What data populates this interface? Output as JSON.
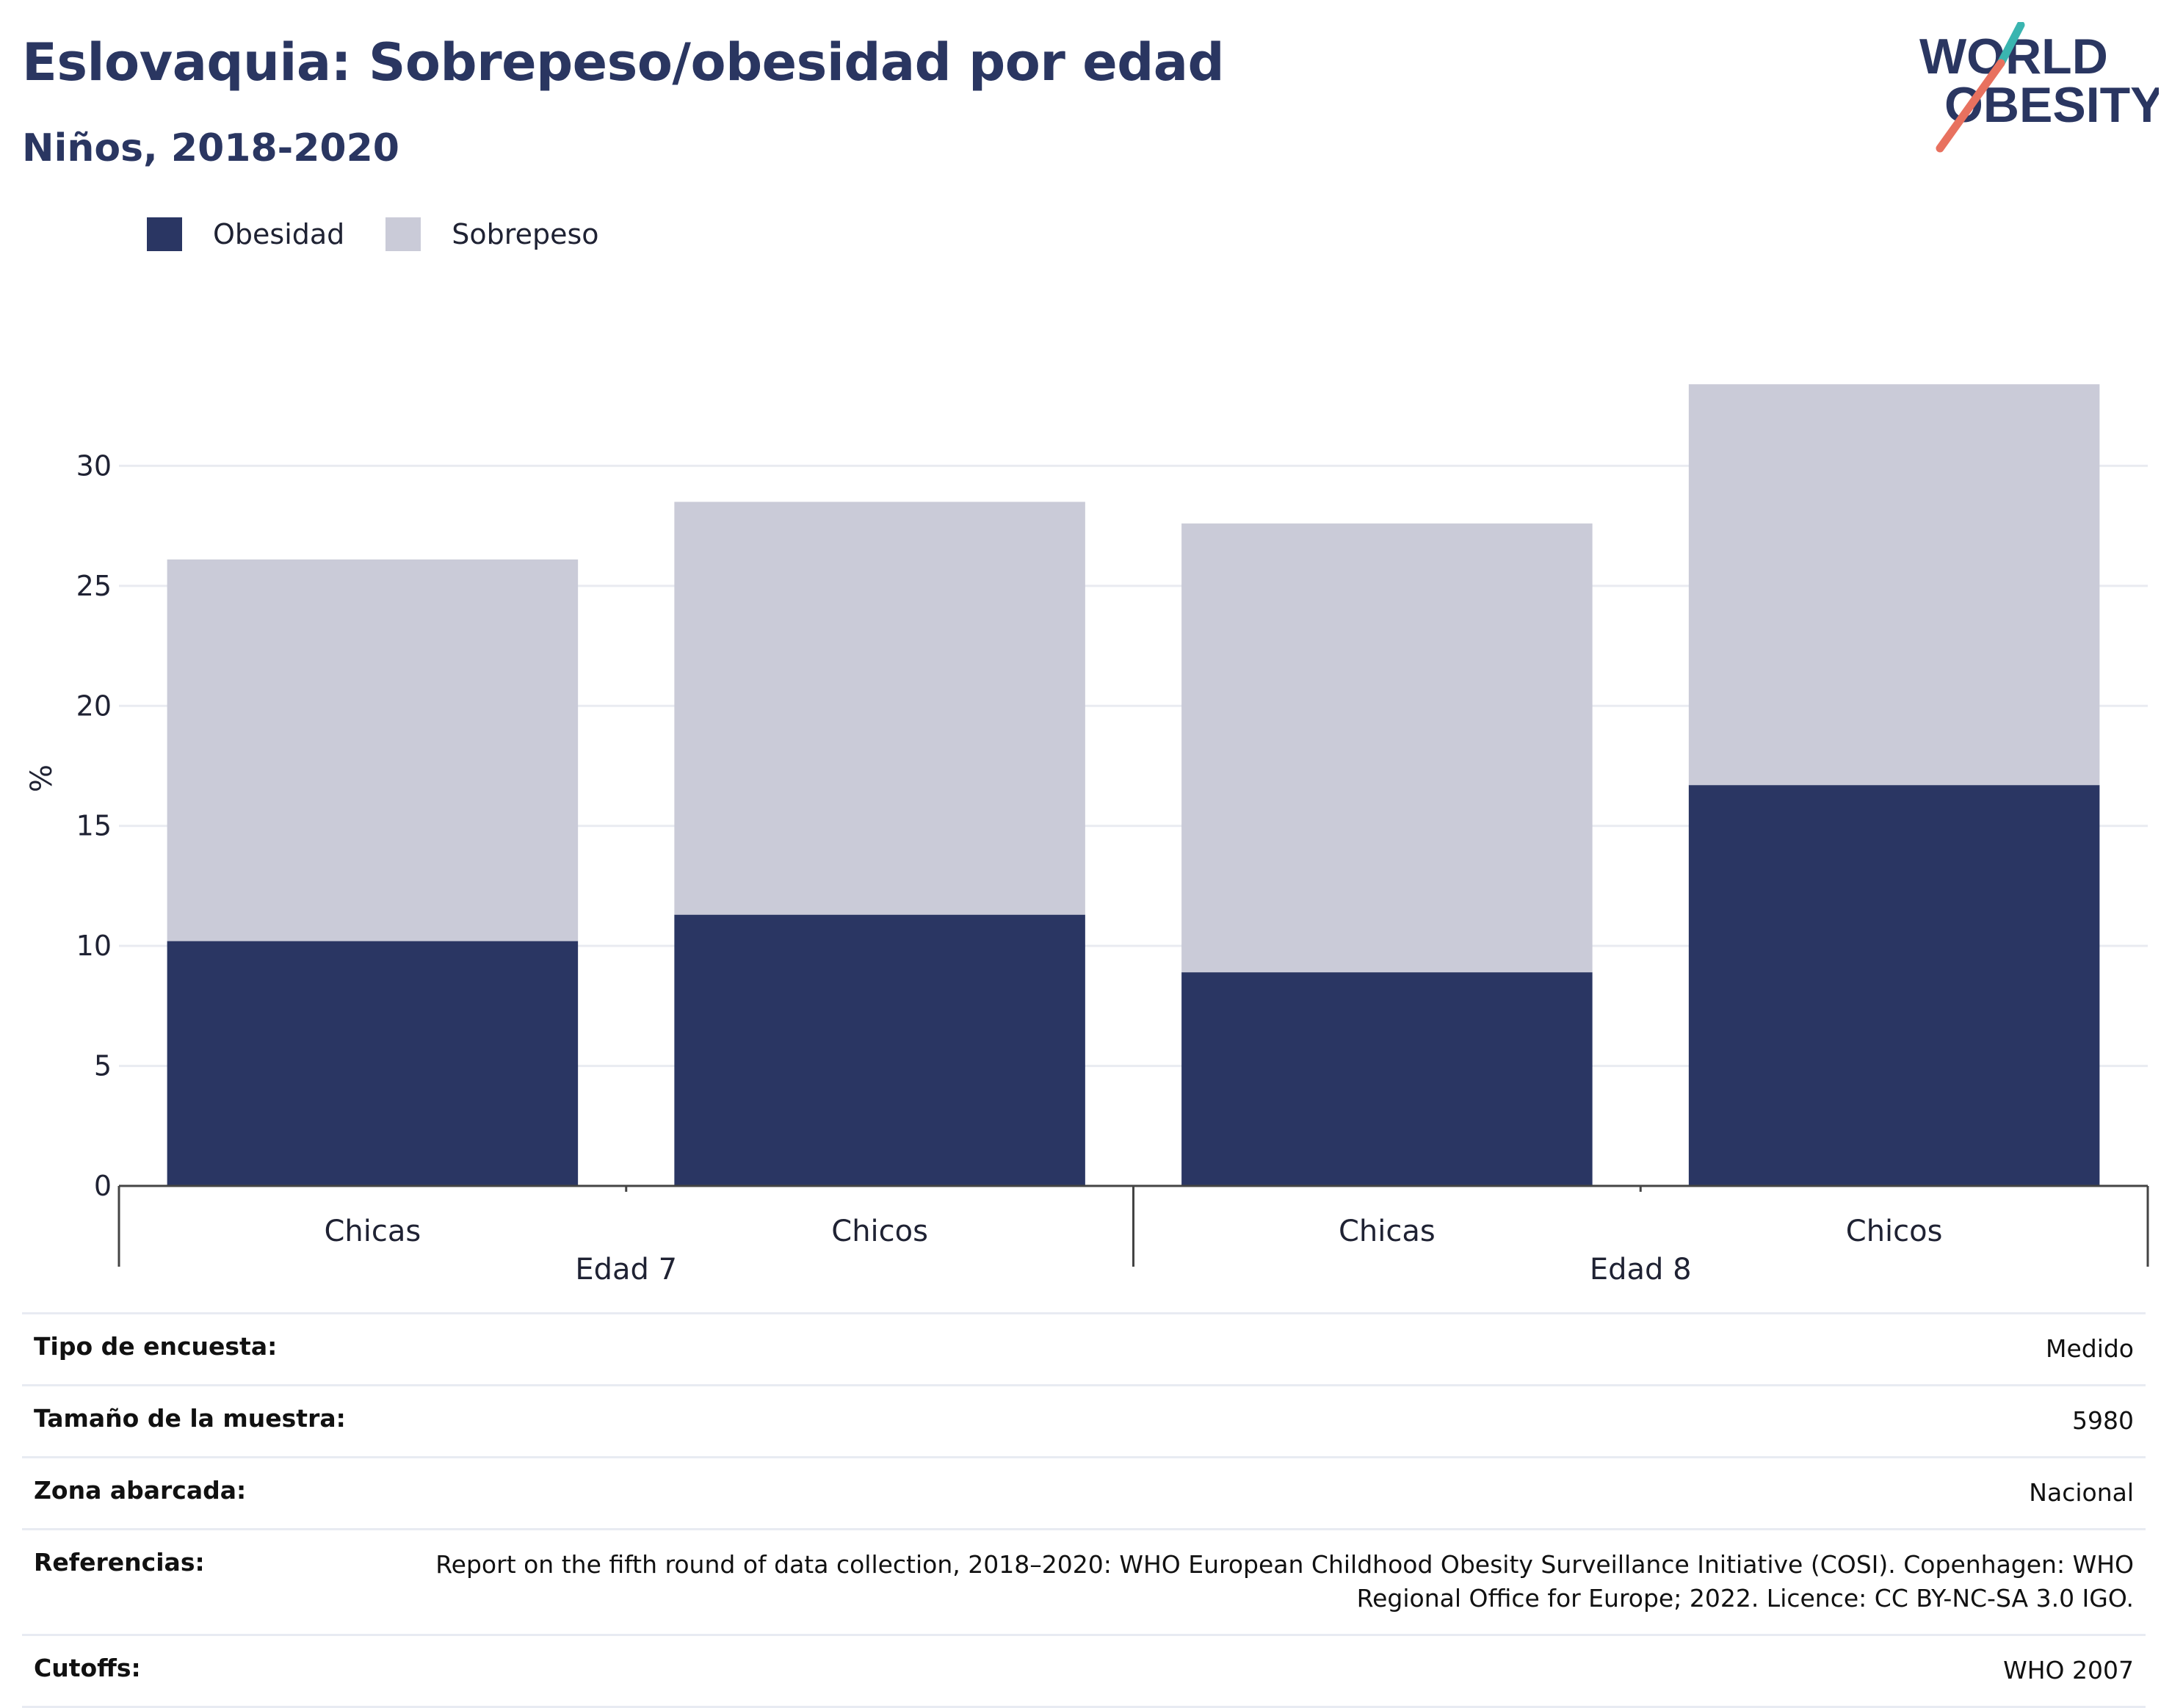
{
  "header": {
    "title": "Eslovaquia: Sobrepeso/obesidad por edad",
    "subtitle": "Niños, 2018-2020"
  },
  "logo": {
    "line1": "WORLD",
    "line2": "OBESITY",
    "accent_teal": "#3ab5b0",
    "accent_coral": "#e8715f"
  },
  "legend": [
    {
      "label": "Obesidad",
      "color": "#2a3663"
    },
    {
      "label": "Sobrepeso",
      "color": "#cacbd8"
    }
  ],
  "chart_data": {
    "type": "bar",
    "stacked": true,
    "ylabel": "%",
    "ylim": [
      0,
      33.5
    ],
    "yticks": [
      0,
      5,
      10,
      15,
      20,
      25,
      30
    ],
    "grid": true,
    "legend_position": "top-left",
    "groups": [
      {
        "label": "Edad 7",
        "categories": [
          "Chicas",
          "Chicos"
        ]
      },
      {
        "label": "Edad 8",
        "categories": [
          "Chicas",
          "Chicos"
        ]
      }
    ],
    "categories": [
      "Chicas",
      "Chicos",
      "Chicas",
      "Chicos"
    ],
    "series": [
      {
        "name": "Obesidad",
        "color": "#2a3663",
        "values": [
          10.2,
          11.3,
          8.9,
          16.7
        ]
      },
      {
        "name": "Sobrepeso",
        "color": "#cacbd8",
        "values": [
          15.9,
          17.2,
          18.7,
          16.7
        ]
      }
    ]
  },
  "info": [
    {
      "key": "Tipo de encuesta:",
      "value": "Medido"
    },
    {
      "key": "Tamaño de la muestra:",
      "value": "5980"
    },
    {
      "key": "Zona abarcada:",
      "value": "Nacional"
    },
    {
      "key": "Referencias:",
      "value": "Report on the fifth round of data collection, 2018–2020: WHO European Childhood Obesity Surveillance Initiative (COSI). Copenhagen: WHO Regional Office for Europe; 2022. Licence: CC BY-NC-SA 3.0 IGO."
    },
    {
      "key": "Cutoffs:",
      "value": "WHO 2007"
    }
  ]
}
